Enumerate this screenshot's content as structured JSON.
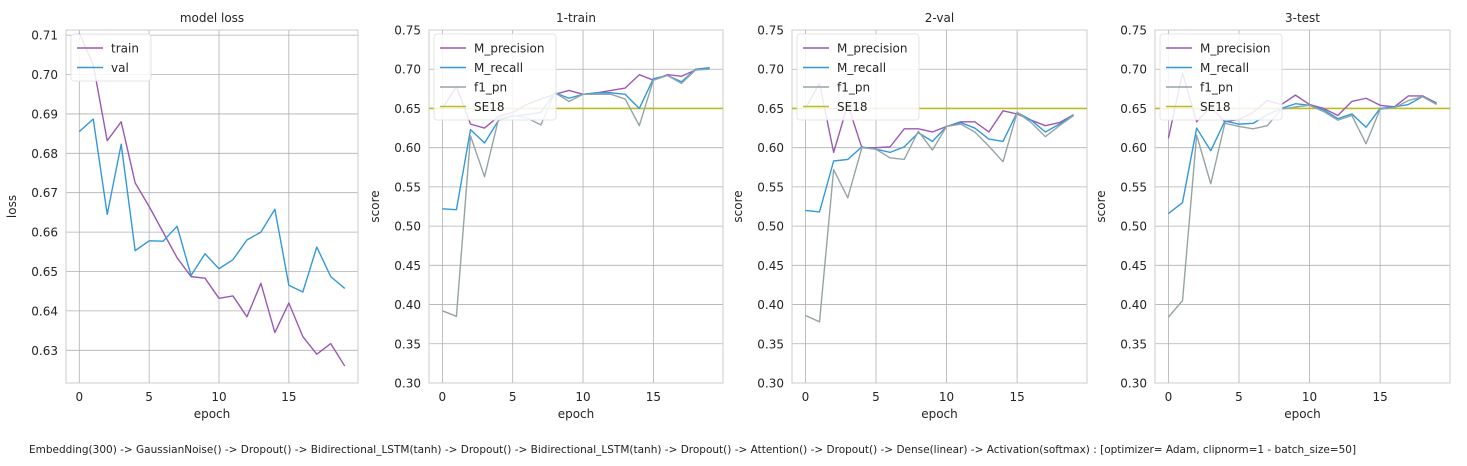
{
  "caption": "Embedding(300) -> GaussianNoise() -> Dropout() -> Bidirectional_LSTM(tanh) -> Dropout() -> Bidirectional_LSTM(tanh) -> Dropout() -> Attention() -> Dropout() -> Dense(linear) -> Activation(softmax) : [optimizer= Adam, clipnorm=1 - batch_size=50]",
  "colors": {
    "purple": "#9b59b6",
    "blue": "#3498db",
    "gray": "#95a5a6",
    "olive": "#bcbd22",
    "grid": "#b0b0b0",
    "axis": "#cccccc"
  },
  "chart_data": [
    {
      "type": "line",
      "title": "model loss",
      "xlabel": "epoch",
      "ylabel": "loss",
      "xlim": [
        -0.95,
        19.95
      ],
      "ylim": [
        0.6217,
        0.7113
      ],
      "xticks": [
        0,
        5,
        10,
        15
      ],
      "yticks": [
        0.63,
        0.64,
        0.65,
        0.66,
        0.67,
        0.68,
        0.69,
        0.7,
        0.71
      ],
      "ytick_labels": [
        "0.63",
        "0.64",
        "0.65",
        "0.66",
        "0.67",
        "0.68",
        "0.69",
        "0.70",
        "0.71"
      ],
      "grid": true,
      "legend": "top-left",
      "x": [
        0,
        1,
        2,
        3,
        4,
        5,
        6,
        7,
        8,
        9,
        10,
        11,
        12,
        13,
        14,
        15,
        16,
        17,
        18,
        19
      ],
      "series": [
        {
          "name": "train",
          "color": "#9b59b6",
          "values": [
            0.7105,
            0.7025,
            0.6832,
            0.688,
            0.6725,
            0.6665,
            0.66,
            0.6535,
            0.6487,
            0.6483,
            0.6432,
            0.6438,
            0.6385,
            0.647,
            0.6345,
            0.642,
            0.6335,
            0.629,
            0.6317,
            0.626
          ]
        },
        {
          "name": "val",
          "color": "#3498db",
          "values": [
            0.6855,
            0.6887,
            0.6645,
            0.6823,
            0.6553,
            0.6578,
            0.6577,
            0.6615,
            0.649,
            0.6545,
            0.6507,
            0.653,
            0.658,
            0.66,
            0.6658,
            0.6465,
            0.6448,
            0.6562,
            0.6487,
            0.6457
          ]
        }
      ]
    },
    {
      "type": "line",
      "title": "1-train",
      "xlabel": "epoch",
      "ylabel": "score",
      "xlim": [
        -0.95,
        19.95
      ],
      "ylim": [
        0.3,
        0.75
      ],
      "xticks": [
        0,
        5,
        10,
        15
      ],
      "yticks": [
        0.3,
        0.35,
        0.4,
        0.45,
        0.5,
        0.55,
        0.6,
        0.65,
        0.7,
        0.75
      ],
      "ytick_labels": [
        "0.30",
        "0.35",
        "0.40",
        "0.45",
        "0.50",
        "0.55",
        "0.60",
        "0.65",
        "0.70",
        "0.75"
      ],
      "grid": true,
      "legend": "top-left",
      "x": [
        0,
        1,
        2,
        3,
        4,
        5,
        6,
        7,
        8,
        9,
        10,
        11,
        12,
        13,
        14,
        15,
        16,
        17,
        18,
        19
      ],
      "hline": {
        "name": "SE18",
        "value": 0.65,
        "color": "#bcbd22"
      },
      "series": [
        {
          "name": "M_precision",
          "color": "#9b59b6",
          "values": [
            0.65,
            0.678,
            0.63,
            0.625,
            0.64,
            0.645,
            0.655,
            0.662,
            0.668,
            0.673,
            0.668,
            0.67,
            0.673,
            0.676,
            0.693,
            0.686,
            0.693,
            0.691,
            0.699,
            0.702
          ]
        },
        {
          "name": "M_recall",
          "color": "#3498db",
          "values": [
            0.522,
            0.521,
            0.623,
            0.606,
            0.635,
            0.64,
            0.642,
            0.645,
            0.67,
            0.663,
            0.668,
            0.67,
            0.67,
            0.668,
            0.65,
            0.688,
            0.692,
            0.684,
            0.7,
            0.702
          ]
        },
        {
          "name": "f1_pn",
          "color": "#95a5a6",
          "values": [
            0.392,
            0.385,
            0.615,
            0.563,
            0.637,
            0.641,
            0.638,
            0.629,
            0.67,
            0.659,
            0.668,
            0.668,
            0.668,
            0.662,
            0.628,
            0.686,
            0.692,
            0.682,
            0.699,
            0.7
          ]
        }
      ]
    },
    {
      "type": "line",
      "title": "2-val",
      "xlabel": "epoch",
      "ylabel": "score",
      "xlim": [
        -0.95,
        19.95
      ],
      "ylim": [
        0.3,
        0.75
      ],
      "xticks": [
        0,
        5,
        10,
        15
      ],
      "yticks": [
        0.3,
        0.35,
        0.4,
        0.45,
        0.5,
        0.55,
        0.6,
        0.65,
        0.7,
        0.75
      ],
      "ytick_labels": [
        "0.30",
        "0.35",
        "0.40",
        "0.45",
        "0.50",
        "0.55",
        "0.60",
        "0.65",
        "0.70",
        "0.75"
      ],
      "grid": true,
      "legend": "top-left",
      "x": [
        0,
        1,
        2,
        3,
        4,
        5,
        6,
        7,
        8,
        9,
        10,
        11,
        12,
        13,
        14,
        15,
        16,
        17,
        18,
        19
      ],
      "hline": {
        "name": "SE18",
        "value": 0.65,
        "color": "#bcbd22"
      },
      "series": [
        {
          "name": "M_precision",
          "color": "#9b59b6",
          "values": [
            0.65,
            0.682,
            0.594,
            0.655,
            0.6,
            0.6,
            0.601,
            0.624,
            0.624,
            0.62,
            0.627,
            0.633,
            0.633,
            0.62,
            0.647,
            0.643,
            0.635,
            0.628,
            0.632,
            0.642
          ]
        },
        {
          "name": "M_recall",
          "color": "#3498db",
          "values": [
            0.52,
            0.518,
            0.583,
            0.585,
            0.601,
            0.598,
            0.594,
            0.601,
            0.619,
            0.608,
            0.627,
            0.632,
            0.625,
            0.611,
            0.608,
            0.645,
            0.635,
            0.62,
            0.63,
            0.642
          ]
        },
        {
          "name": "f1_pn",
          "color": "#95a5a6",
          "values": [
            0.386,
            0.378,
            0.572,
            0.536,
            0.6,
            0.598,
            0.587,
            0.585,
            0.621,
            0.597,
            0.627,
            0.63,
            0.62,
            0.602,
            0.582,
            0.645,
            0.632,
            0.614,
            0.628,
            0.641
          ]
        }
      ]
    },
    {
      "type": "line",
      "title": "3-test",
      "xlabel": "epoch",
      "ylabel": "score",
      "xlim": [
        -0.95,
        19.95
      ],
      "ylim": [
        0.3,
        0.75
      ],
      "xticks": [
        0,
        5,
        10,
        15
      ],
      "yticks": [
        0.3,
        0.35,
        0.4,
        0.45,
        0.5,
        0.55,
        0.6,
        0.65,
        0.7,
        0.75
      ],
      "ytick_labels": [
        "0.30",
        "0.35",
        "0.40",
        "0.45",
        "0.50",
        "0.55",
        "0.60",
        "0.65",
        "0.70",
        "0.75"
      ],
      "grid": true,
      "legend": "top-left",
      "x": [
        0,
        1,
        2,
        3,
        4,
        5,
        6,
        7,
        8,
        9,
        10,
        11,
        12,
        13,
        14,
        15,
        16,
        17,
        18,
        19
      ],
      "hline": {
        "name": "SE18",
        "value": 0.65,
        "color": "#bcbd22"
      },
      "series": [
        {
          "name": "M_precision",
          "color": "#9b59b6",
          "values": [
            0.612,
            0.695,
            0.633,
            0.652,
            0.633,
            0.636,
            0.645,
            0.66,
            0.655,
            0.667,
            0.655,
            0.65,
            0.641,
            0.659,
            0.663,
            0.654,
            0.652,
            0.666,
            0.666,
            0.657
          ]
        },
        {
          "name": "M_recall",
          "color": "#3498db",
          "values": [
            0.516,
            0.53,
            0.625,
            0.596,
            0.634,
            0.63,
            0.631,
            0.642,
            0.65,
            0.656,
            0.654,
            0.648,
            0.637,
            0.643,
            0.626,
            0.65,
            0.652,
            0.655,
            0.665,
            0.656
          ]
        },
        {
          "name": "f1_pn",
          "color": "#95a5a6",
          "values": [
            0.384,
            0.405,
            0.616,
            0.554,
            0.631,
            0.627,
            0.624,
            0.628,
            0.649,
            0.652,
            0.654,
            0.646,
            0.635,
            0.641,
            0.605,
            0.649,
            0.651,
            0.66,
            0.665,
            0.655
          ]
        }
      ]
    }
  ]
}
